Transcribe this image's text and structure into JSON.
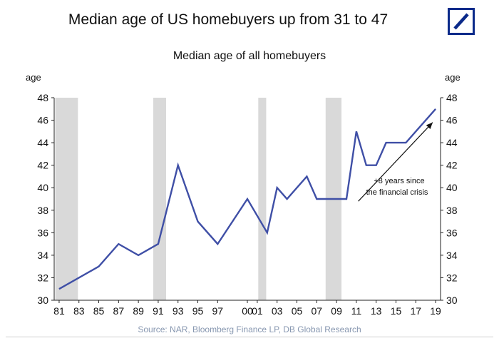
{
  "header": {
    "title": "Median age of US homebuyers up from 31 to 47"
  },
  "colors": {
    "line": "#3f4fa6",
    "recession": "#d9d9d9",
    "logo": "#0b2a8a"
  },
  "chart_data": {
    "type": "line",
    "title": "Median age of all homebuyers",
    "ylabel_left": "age",
    "ylabel_right": "age",
    "ylim": [
      30,
      48
    ],
    "yticks": [
      30,
      32,
      34,
      36,
      38,
      40,
      42,
      44,
      46,
      48
    ],
    "xlim": [
      1980.5,
      2019.5
    ],
    "xticks": [
      1981,
      1983,
      1985,
      1987,
      1989,
      1991,
      1993,
      1995,
      1997,
      2000,
      2001,
      2003,
      2005,
      2007,
      2009,
      2011,
      2013,
      2015,
      2017,
      2019
    ],
    "xtick_labels": [
      "81",
      "83",
      "85",
      "87",
      "89",
      "91",
      "93",
      "95",
      "97",
      "00",
      "01",
      "03",
      "05",
      "07",
      "09",
      "11",
      "13",
      "15",
      "17",
      "19"
    ],
    "series": [
      {
        "name": "Median age of all homebuyers",
        "x": [
          1981,
          1985,
          1987,
          1989,
          1991,
          1993,
          1995,
          1997,
          2000,
          2002,
          2003,
          2004,
          2006,
          2007,
          2010,
          2011,
          2012,
          2013,
          2014,
          2016,
          2019
        ],
        "y": [
          31,
          33,
          35,
          34,
          35,
          42,
          37,
          35,
          39,
          36,
          40,
          39,
          41,
          39,
          39,
          45,
          42,
          42,
          44,
          44,
          47
        ]
      }
    ],
    "recessions": [
      {
        "start": 1980.6,
        "end": 1982.9
      },
      {
        "start": 1990.5,
        "end": 1991.8
      },
      {
        "start": 2001.1,
        "end": 2001.9
      },
      {
        "start": 2007.9,
        "end": 2009.5
      }
    ],
    "annotation": {
      "lines": [
        "+8 years since",
        "the financial crisis"
      ],
      "from": {
        "x": 2011.2,
        "y": 38.8
      },
      "to": {
        "x": 2018.7,
        "y": 45.8
      }
    }
  },
  "footer": {
    "source": "Source: NAR, Bloomberg Finance LP, DB Global Research"
  }
}
